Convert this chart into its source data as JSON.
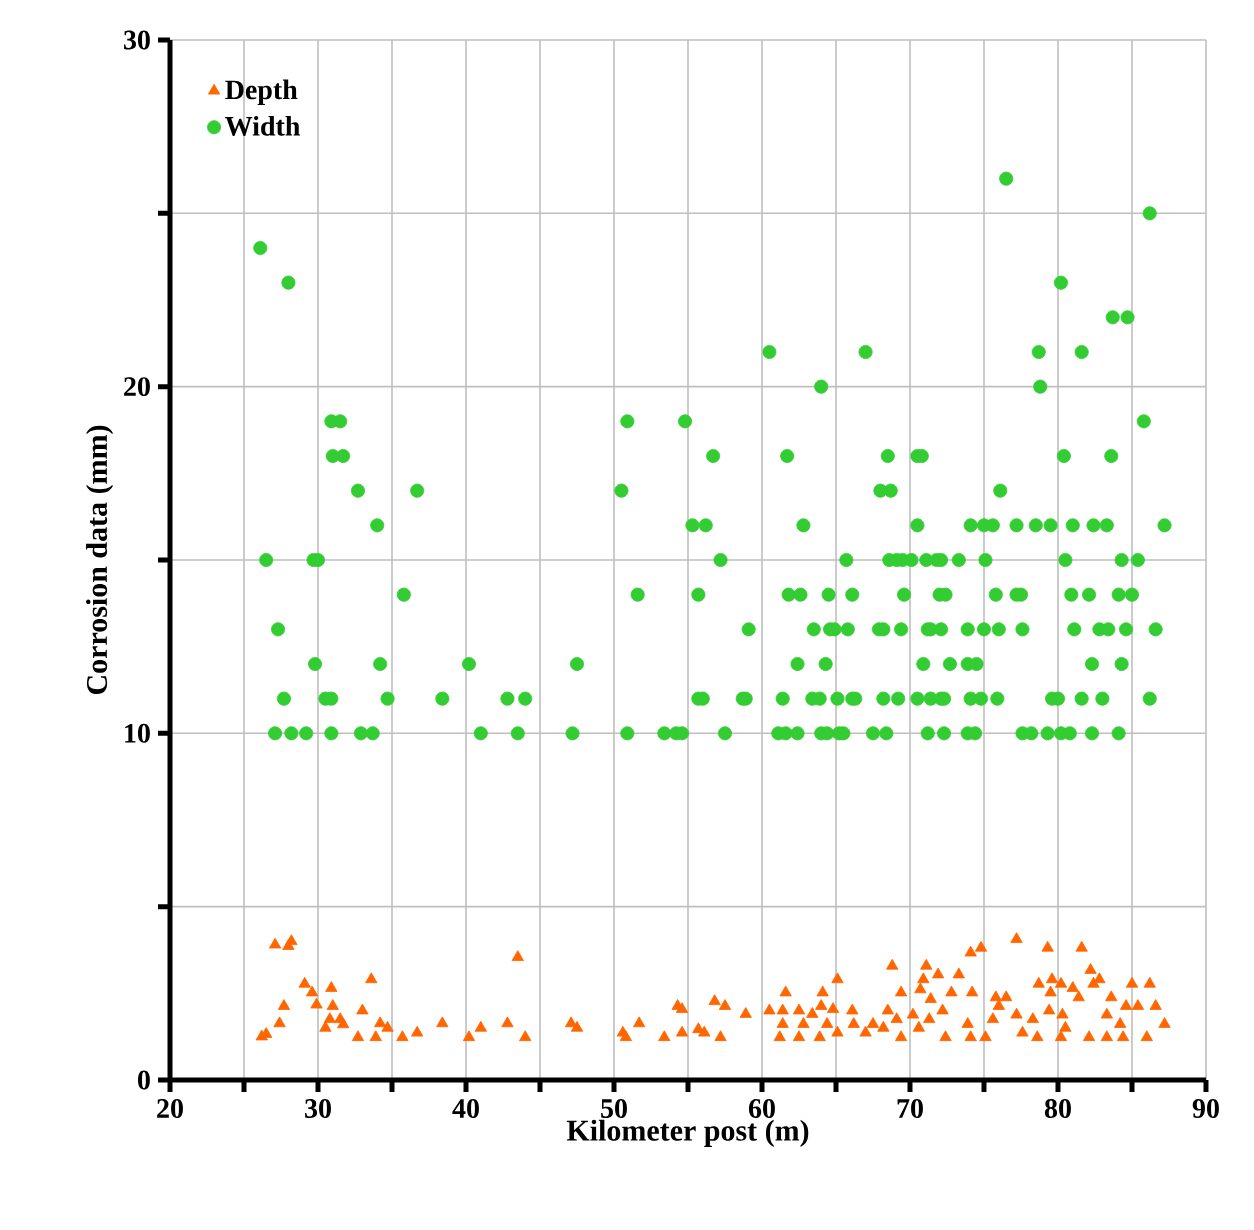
{
  "chart_data": {
    "type": "scatter",
    "xlabel": "Kilometer post (m)",
    "ylabel": "Corrosion data (mm)",
    "xlim": [
      20,
      90
    ],
    "ylim": [
      0,
      30
    ],
    "xticks": [
      20,
      30,
      40,
      50,
      60,
      70,
      80,
      90
    ],
    "yticks": [
      0,
      10,
      20,
      30
    ],
    "grid": true,
    "legend": "top left",
    "series": [
      {
        "name": "Depth",
        "color": "#ff6600",
        "marker": "triangle",
        "x": [
          27.1,
          28.2,
          28.0,
          29.1,
          29.6,
          30.9,
          29.9,
          31.0,
          27.7,
          33.6,
          33.0,
          27.4,
          30.8,
          31.5,
          31.7,
          30.5,
          34.2,
          34.7,
          26.2,
          26.5,
          32.7,
          33.9,
          35.7,
          36.7,
          38.4,
          40.2,
          41.0,
          42.8,
          43.5,
          44.0,
          47.1,
          47.5,
          50.6,
          50.8,
          51.7,
          53.4,
          54.3,
          54.6,
          54.6,
          55.7,
          56.1,
          56.8,
          57.5,
          57.2,
          58.9,
          60.5,
          61.6,
          61.4,
          62.5,
          61.4,
          61.2,
          62.5,
          62.8,
          64.1,
          64.0,
          63.4,
          64.8,
          65.1,
          64.4,
          63.9,
          65.1,
          66.1,
          66.2,
          67.5,
          67.0,
          68.2,
          68.5,
          68.8,
          69.4,
          69.1,
          69.4,
          70.2,
          70.6,
          71.1,
          70.9,
          70.7,
          71.4,
          71.9,
          72.2,
          72.4,
          71.3,
          72.8,
          73.3,
          74.1,
          74.8,
          74.2,
          73.9,
          74.1,
          75.1,
          75.6,
          75.8,
          76.5,
          76.0,
          77.2,
          77.2,
          77.6,
          78.3,
          78.6,
          78.7,
          79.3,
          79.6,
          79.5,
          79.4,
          80.2,
          80.3,
          81.0,
          81.6,
          81.4,
          80.5,
          80.2,
          82.2,
          82.4,
          82.8,
          82.1,
          83.3,
          83.6,
          83.3,
          84.2,
          84.4,
          84.6,
          85.0,
          85.4,
          86.2,
          86.0,
          86.6,
          87.2
        ],
        "values": [
          3.9,
          4.0,
          3.86,
          2.77,
          2.52,
          2.65,
          2.17,
          2.13,
          2.13,
          2.9,
          2.0,
          1.63,
          1.75,
          1.75,
          1.6,
          1.5,
          1.63,
          1.5,
          1.25,
          1.32,
          1.23,
          1.23,
          1.23,
          1.36,
          1.63,
          1.23,
          1.5,
          1.63,
          3.54,
          1.23,
          1.63,
          1.5,
          1.36,
          1.23,
          1.63,
          1.23,
          2.13,
          2.04,
          1.36,
          1.46,
          1.36,
          2.27,
          2.13,
          1.23,
          1.9,
          2.0,
          2.52,
          2.0,
          2.0,
          1.61,
          1.23,
          1.23,
          1.61,
          2.52,
          2.13,
          1.9,
          2.04,
          2.9,
          1.61,
          1.23,
          1.36,
          2.0,
          1.61,
          1.61,
          1.36,
          1.5,
          2.0,
          3.29,
          2.52,
          1.75,
          1.23,
          1.88,
          1.5,
          3.29,
          2.9,
          2.61,
          2.33,
          3.04,
          2.0,
          1.23,
          1.75,
          2.52,
          3.04,
          3.67,
          3.81,
          2.52,
          1.61,
          1.23,
          1.23,
          1.75,
          2.38,
          2.38,
          2.13,
          4.06,
          1.88,
          1.36,
          1.75,
          1.23,
          2.77,
          3.81,
          2.9,
          2.52,
          2.0,
          2.77,
          1.88,
          2.65,
          3.81,
          2.38,
          1.5,
          1.23,
          3.17,
          2.77,
          2.9,
          1.23,
          1.88,
          2.38,
          1.23,
          1.61,
          1.23,
          2.13,
          2.77,
          2.13,
          2.77,
          1.23,
          2.13,
          1.61
        ]
      },
      {
        "name": "Width",
        "color": "#33cc33",
        "marker": "circle",
        "x": [
          26.1,
          28.0,
          30.9,
          31.5,
          31.0,
          31.7,
          32.7,
          36.7,
          34.0,
          26.5,
          29.7,
          30.0,
          35.8,
          27.3,
          29.8,
          34.2,
          40.2,
          47.5,
          27.7,
          30.5,
          30.9,
          34.7,
          38.4,
          42.8,
          44.0,
          27.1,
          28.2,
          29.2,
          30.9,
          32.9,
          33.7,
          41.0,
          43.5,
          47.2,
          50.9,
          53.4,
          54.2,
          50.9,
          50.5,
          51.6,
          76.5,
          86.2,
          80.2,
          83.7,
          84.7,
          60.5,
          67.0,
          78.7,
          81.6,
          64.0,
          78.8,
          54.8,
          85.8,
          56.7,
          61.7,
          68.5,
          70.5,
          70.8,
          80.4,
          83.6,
          68.0,
          68.7,
          76.1,
          55.3,
          56.2,
          62.8,
          70.5,
          74.1,
          75.0,
          75.6,
          77.2,
          78.5,
          79.5,
          81.0,
          82.4,
          83.3,
          87.2,
          57.2,
          65.7,
          68.6,
          69.1,
          69.5,
          70.1,
          71.1,
          71.8,
          72.1,
          73.3,
          75.1,
          80.5,
          84.3,
          85.4,
          55.7,
          61.8,
          62.6,
          64.5,
          66.1,
          69.6,
          72.0,
          72.4,
          75.8,
          77.2,
          77.5,
          80.9,
          82.1,
          84.1,
          85.0,
          59.1,
          63.5,
          64.6,
          64.9,
          65.8,
          67.9,
          68.2,
          69.4,
          71.2,
          71.4,
          72.1,
          73.9,
          75.0,
          76.0,
          77.6,
          81.1,
          82.8,
          83.4,
          84.6,
          86.6,
          62.4,
          64.3,
          70.9,
          72.7,
          73.9,
          74.5,
          82.3,
          84.3,
          55.7,
          56.0,
          58.7,
          58.9,
          61.4,
          63.4,
          63.9,
          65.1,
          66.1,
          66.3,
          68.2,
          69.2,
          70.5,
          71.4,
          72.1,
          72.3,
          74.1,
          74.8,
          75.9,
          79.6,
          80.0,
          81.6,
          83.0,
          86.2,
          54.6,
          57.5,
          61.1,
          61.6,
          62.4,
          64.0,
          64.4,
          65.2,
          65.5,
          67.5,
          68.4,
          71.2,
          72.3,
          73.9,
          74.4,
          77.6,
          78.2,
          79.3,
          80.2,
          80.8,
          82.3,
          84.1
        ],
        "values": [
          24,
          23,
          19,
          19,
          18,
          18,
          17,
          17,
          16,
          15,
          15,
          15,
          14,
          13,
          12,
          12,
          12,
          12,
          11,
          11,
          11,
          11,
          11,
          11,
          11,
          10,
          10,
          10,
          10,
          10,
          10,
          10,
          10,
          10,
          10,
          10,
          10,
          19,
          17,
          14,
          26,
          25,
          23,
          22,
          22,
          21,
          21,
          21,
          21,
          20,
          20,
          19,
          19,
          18,
          18,
          18,
          18,
          18,
          18,
          18,
          17,
          17,
          17,
          16,
          16,
          16,
          16,
          16,
          16,
          16,
          16,
          16,
          16,
          16,
          16,
          16,
          16,
          15,
          15,
          15,
          15,
          15,
          15,
          15,
          15,
          15,
          15,
          15,
          15,
          15,
          15,
          14,
          14,
          14,
          14,
          14,
          14,
          14,
          14,
          14,
          14,
          14,
          14,
          14,
          14,
          14,
          13,
          13,
          13,
          13,
          13,
          13,
          13,
          13,
          13,
          13,
          13,
          13,
          13,
          13,
          13,
          13,
          13,
          13,
          13,
          13,
          12,
          12,
          12,
          12,
          12,
          12,
          12,
          12,
          11,
          11,
          11,
          11,
          11,
          11,
          11,
          11,
          11,
          11,
          11,
          11,
          11,
          11,
          11,
          11,
          11,
          11,
          11,
          11,
          11,
          11,
          11,
          11,
          10,
          10,
          10,
          10,
          10,
          10,
          10,
          10,
          10,
          10,
          10,
          10,
          10,
          10,
          10,
          10,
          10,
          10,
          10,
          10,
          10,
          10
        ]
      }
    ]
  }
}
